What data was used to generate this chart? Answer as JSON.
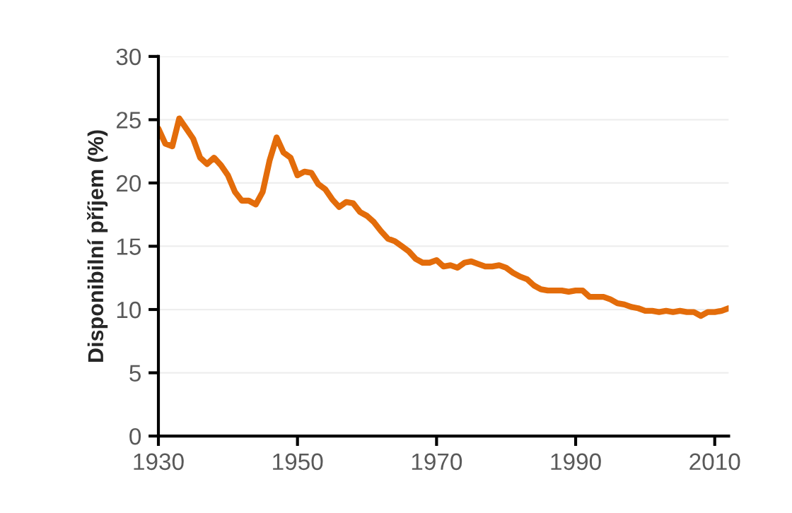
{
  "chart_data": {
    "type": "line",
    "ylabel": "Disponibilní příjem (%)",
    "xlim": [
      1930,
      2012
    ],
    "xticks": [
      1930,
      1950,
      1970,
      1990,
      2010
    ],
    "ylim": [
      0,
      30
    ],
    "yticks": [
      0,
      5,
      10,
      15,
      20,
      25,
      30
    ],
    "grid": "y",
    "x": [
      1930,
      1931,
      1932,
      1933,
      1934,
      1935,
      1936,
      1937,
      1938,
      1939,
      1940,
      1941,
      1942,
      1943,
      1944,
      1945,
      1946,
      1947,
      1948,
      1949,
      1950,
      1951,
      1952,
      1953,
      1954,
      1955,
      1956,
      1957,
      1958,
      1959,
      1960,
      1961,
      1962,
      1963,
      1964,
      1965,
      1966,
      1967,
      1968,
      1969,
      1970,
      1971,
      1972,
      1973,
      1974,
      1975,
      1976,
      1977,
      1978,
      1979,
      1980,
      1981,
      1982,
      1983,
      1984,
      1985,
      1986,
      1987,
      1988,
      1989,
      1990,
      1991,
      1992,
      1993,
      1994,
      1995,
      1996,
      1997,
      1998,
      1999,
      2000,
      2001,
      2002,
      2003,
      2004,
      2005,
      2006,
      2007,
      2008,
      2009,
      2010,
      2011,
      2012
    ],
    "series": [
      {
        "color": "#e36c0a",
        "values": [
          24.3,
          23.1,
          22.9,
          25.1,
          24.3,
          23.5,
          22.0,
          21.5,
          22.0,
          21.4,
          20.6,
          19.3,
          18.6,
          18.6,
          18.3,
          19.3,
          21.8,
          23.6,
          22.4,
          22.0,
          20.6,
          20.9,
          20.8,
          19.9,
          19.5,
          18.7,
          18.1,
          18.5,
          18.4,
          17.7,
          17.4,
          16.9,
          16.2,
          15.6,
          15.4,
          15.0,
          14.6,
          14.0,
          13.7,
          13.7,
          13.9,
          13.4,
          13.5,
          13.3,
          13.7,
          13.8,
          13.6,
          13.4,
          13.4,
          13.5,
          13.3,
          12.9,
          12.6,
          12.4,
          11.9,
          11.6,
          11.5,
          11.5,
          11.5,
          11.4,
          11.5,
          11.5,
          11.0,
          11.0,
          11.0,
          10.8,
          10.5,
          10.4,
          10.2,
          10.1,
          9.9,
          9.9,
          9.8,
          9.9,
          9.8,
          9.9,
          9.8,
          9.8,
          9.5,
          9.8,
          9.8,
          9.9,
          10.1
        ]
      }
    ]
  }
}
